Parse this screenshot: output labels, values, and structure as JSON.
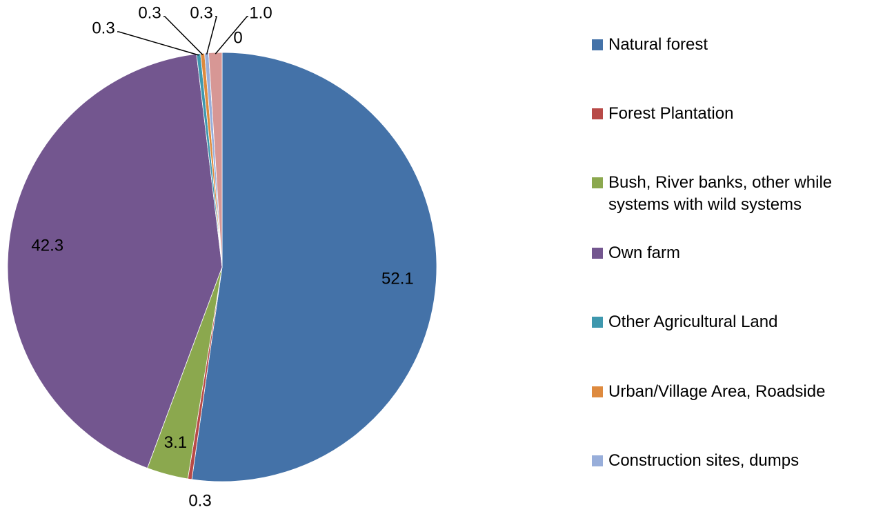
{
  "chart_data": {
    "type": "pie",
    "categories": [
      "Natural forest",
      "Forest Plantation",
      "Bush, River banks, other while systems with wild systems",
      "Own farm",
      "Other Agricultural Land",
      "Urban/Village Area, Roadside",
      "Construction sites, dumps",
      null,
      null
    ],
    "values": [
      52.1,
      0.3,
      3.1,
      42.3,
      0.3,
      0.3,
      0.3,
      0,
      1.0
    ],
    "value_labels": [
      "52.1",
      "0.3",
      "3.1",
      "42.3",
      "0.3",
      "0.3",
      "0.3",
      "0",
      "1.0"
    ],
    "colors": [
      "#4472A8",
      "#B84A47",
      "#8BA84E",
      "#73568F",
      "#3E98AE",
      "#DE8A3E",
      "#98AEDA",
      "#B9CD96",
      "#D79795"
    ],
    "legend": "right"
  }
}
